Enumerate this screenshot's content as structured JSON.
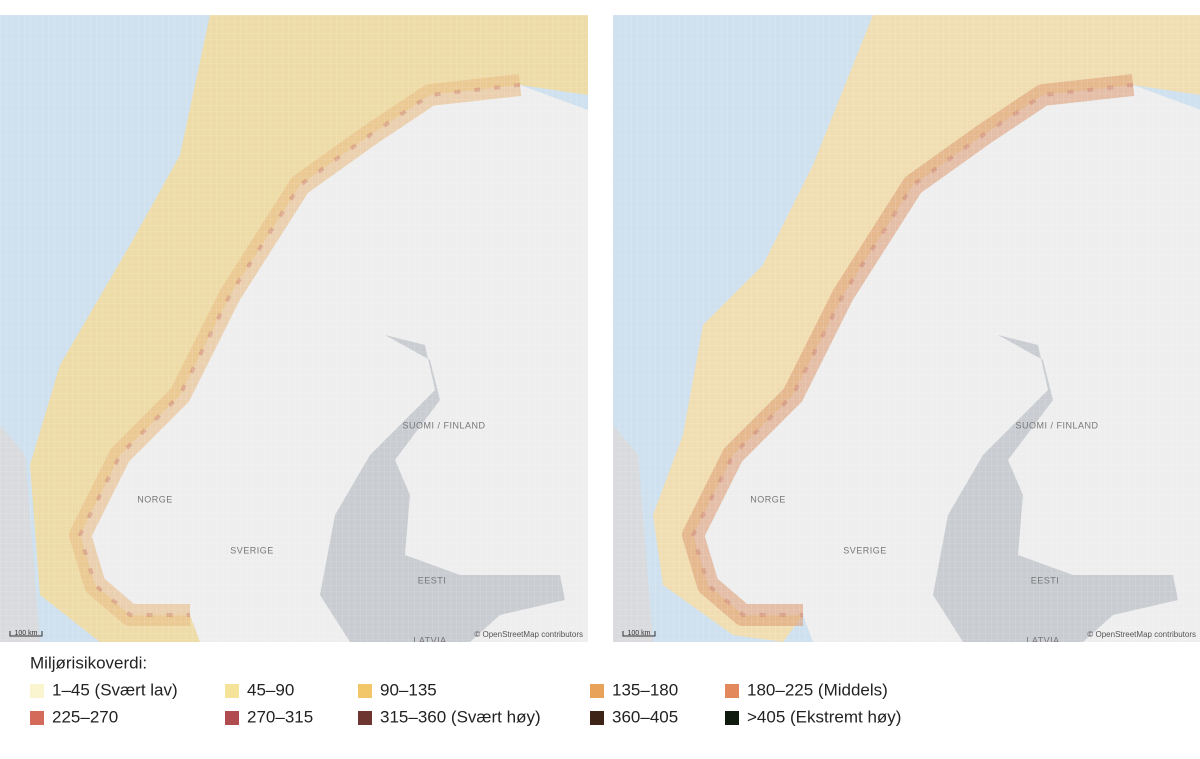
{
  "maps": [
    {
      "labels": [
        "NORGE",
        "SVERIGE",
        "SUOMI / FINLAND",
        "EESTI",
        "LATVIA"
      ],
      "scale": "100 km",
      "attribution": "© OpenStreetMap contributors"
    },
    {
      "labels": [
        "NORGE",
        "SVERIGE",
        "SUOMI / FINLAND",
        "EESTI",
        "LATVIA"
      ],
      "scale": "100 km",
      "attribution": "© OpenStreetMap contributors"
    }
  ],
  "legend": {
    "title": "Miljørisikoverdi:",
    "items": [
      {
        "label": "1–45 (Svært lav)",
        "color": "#fbf5cf"
      },
      {
        "label": "45–90",
        "color": "#f6e39a"
      },
      {
        "label": "90–135",
        "color": "#f2c76a"
      },
      {
        "label": "135–180",
        "color": "#e9a25a"
      },
      {
        "label": "180–225 (Middels)",
        "color": "#e3885a"
      },
      {
        "label": "225–270",
        "color": "#d36a5a"
      },
      {
        "label": "270–315",
        "color": "#b04c50"
      },
      {
        "label": "315–360 (Svært høy)",
        "color": "#6e3630"
      },
      {
        "label": "360–405",
        "color": "#3d2417"
      },
      {
        "label": ">405 (Ekstremt høy)",
        "color": "#101a0e"
      }
    ]
  }
}
